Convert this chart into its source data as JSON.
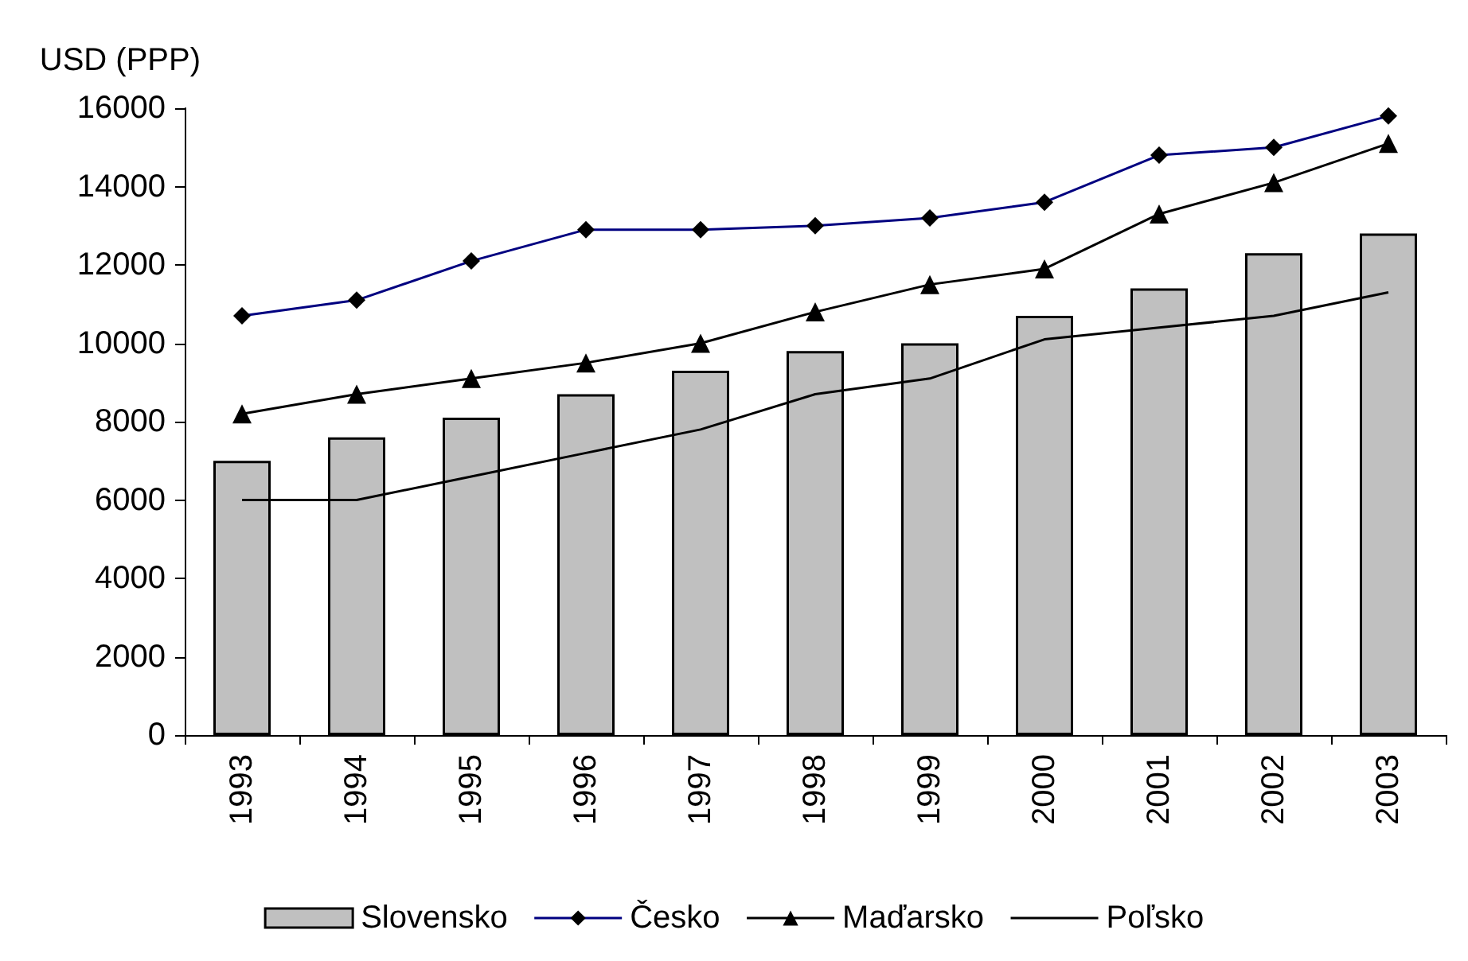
{
  "chart_data": {
    "type": "bar",
    "ylabel": "USD (PPP)",
    "categories": [
      "1993",
      "1994",
      "1995",
      "1996",
      "1997",
      "1998",
      "1999",
      "2000",
      "2001",
      "2002",
      "2003"
    ],
    "series": [
      {
        "name": "Slovensko",
        "color": "#c0c0c0",
        "values": [
          7000,
          7600,
          8100,
          8700,
          9300,
          9800,
          10000,
          10700,
          11400,
          12300,
          12800
        ]
      },
      {
        "name": "Česko",
        "type": "line",
        "color": "#000080",
        "marker": "diamond",
        "values": [
          10700,
          11100,
          12100,
          12900,
          12900,
          13000,
          13200,
          13600,
          14800,
          15000,
          15800
        ]
      },
      {
        "name": "Maďarsko",
        "type": "line",
        "color": "#000000",
        "marker": "triangle",
        "values": [
          8200,
          8700,
          9100,
          9500,
          10000,
          10800,
          11500,
          11900,
          13300,
          14100,
          15100
        ]
      },
      {
        "name": "Poľsko",
        "type": "line",
        "color": "#000000",
        "marker": "none",
        "values": [
          6000,
          6000,
          6600,
          7200,
          7800,
          8700,
          9100,
          10100,
          10400,
          10700,
          11300
        ]
      }
    ],
    "ylim": [
      0,
      16000
    ],
    "yticks": [
      0,
      2000,
      4000,
      6000,
      8000,
      10000,
      12000,
      14000,
      16000
    ],
    "grid": false,
    "legend": "bottom"
  }
}
